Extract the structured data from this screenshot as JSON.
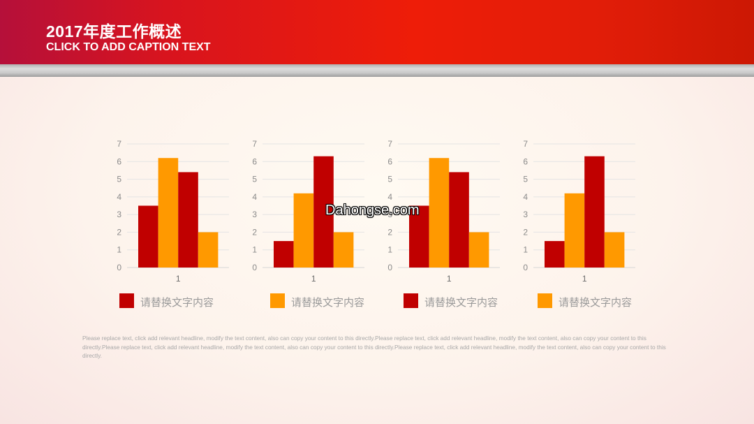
{
  "header": {
    "title": "2017年度工作概述",
    "caption": "CLICK TO ADD CAPTION TEXT"
  },
  "colors": {
    "series_dark": "#c00000",
    "series_light": "#ff9900"
  },
  "chart_data": [
    {
      "type": "bar",
      "categories": [
        "1"
      ],
      "series": [
        {
          "values": [
            3.5
          ]
        },
        {
          "values": [
            6.2
          ]
        },
        {
          "values": [
            5.4
          ]
        },
        {
          "values": [
            2
          ]
        }
      ],
      "series_colors": [
        "#c00000",
        "#ff9900",
        "#c00000",
        "#ff9900"
      ],
      "ylim": [
        0,
        7
      ],
      "yticks": [
        "0",
        "1",
        "2",
        "3",
        "4",
        "5",
        "6",
        "7"
      ],
      "grid": true
    },
    {
      "type": "bar",
      "categories": [
        "1"
      ],
      "series": [
        {
          "values": [
            1.5
          ]
        },
        {
          "values": [
            4.2
          ]
        },
        {
          "values": [
            6.3
          ]
        },
        {
          "values": [
            2
          ]
        }
      ],
      "series_colors": [
        "#c00000",
        "#ff9900",
        "#c00000",
        "#ff9900"
      ],
      "ylim": [
        0,
        7
      ],
      "yticks": [
        "0",
        "1",
        "2",
        "3",
        "4",
        "5",
        "6",
        "7"
      ],
      "grid": true
    },
    {
      "type": "bar",
      "categories": [
        "1"
      ],
      "series": [
        {
          "values": [
            3.5
          ]
        },
        {
          "values": [
            6.2
          ]
        },
        {
          "values": [
            5.4
          ]
        },
        {
          "values": [
            2
          ]
        }
      ],
      "series_colors": [
        "#c00000",
        "#ff9900",
        "#c00000",
        "#ff9900"
      ],
      "ylim": [
        0,
        7
      ],
      "yticks": [
        "0",
        "1",
        "2",
        "3",
        "4",
        "5",
        "6",
        "7"
      ],
      "grid": true
    },
    {
      "type": "bar",
      "categories": [
        "1"
      ],
      "series": [
        {
          "values": [
            1.5
          ]
        },
        {
          "values": [
            4.2
          ]
        },
        {
          "values": [
            6.3
          ]
        },
        {
          "values": [
            2
          ]
        }
      ],
      "series_colors": [
        "#c00000",
        "#ff9900",
        "#c00000",
        "#ff9900"
      ],
      "ylim": [
        0,
        7
      ],
      "yticks": [
        "0",
        "1",
        "2",
        "3",
        "4",
        "5",
        "6",
        "7"
      ],
      "grid": true
    }
  ],
  "legend": [
    {
      "label": "请替换文字内容",
      "color": "#c00000"
    },
    {
      "label": "请替换文字内容",
      "color": "#ff9900"
    },
    {
      "label": "请替换文字内容",
      "color": "#c00000"
    },
    {
      "label": "请替换文字内容",
      "color": "#ff9900"
    }
  ],
  "watermark": "Dahongse.com",
  "body_text": "Please replace text, click add relevant headline, modify the text content, also can copy your content to this directly.Please replace text, click add relevant headline, modify the text content, also can copy your content to this directly.Please replace text, click add relevant headline, modify the text content, also can copy your content to this directly.Please replace text, click add relevant headline, modify the text content, also can copy your content to this directly."
}
